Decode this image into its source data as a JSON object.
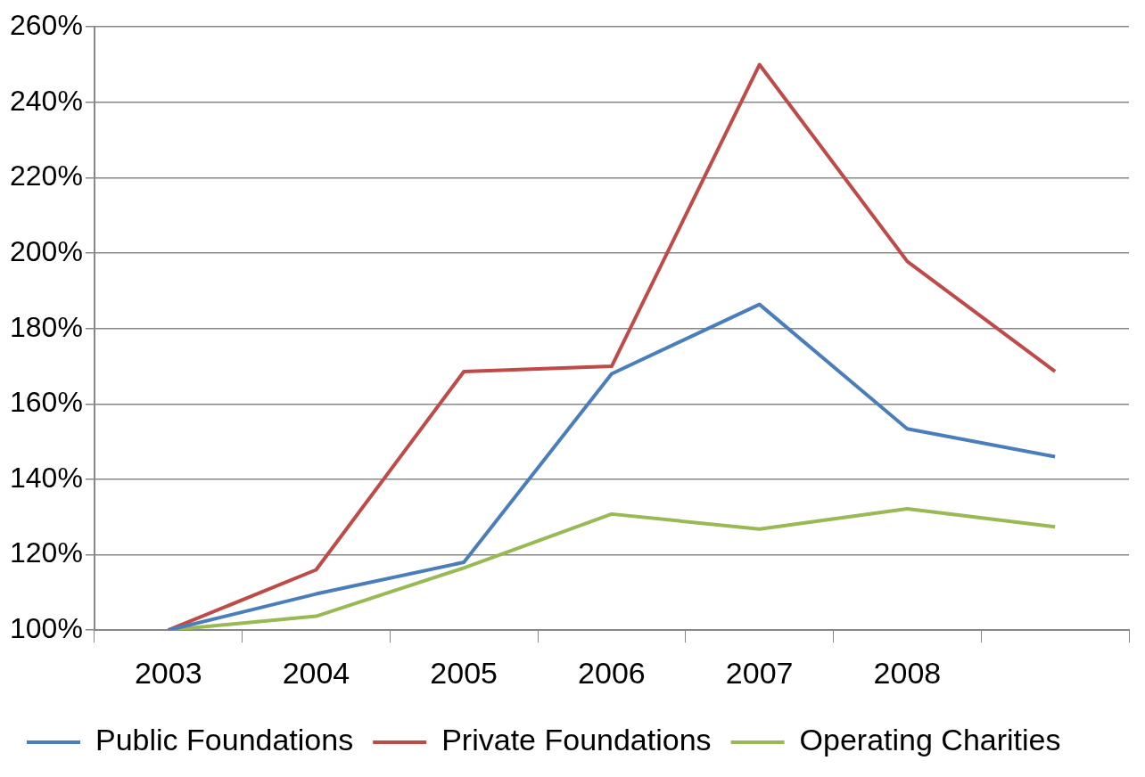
{
  "chart_data": {
    "type": "line",
    "categories": [
      "2003",
      "2004",
      "2005",
      "2006",
      "2007",
      "2008",
      null
    ],
    "series": [
      {
        "name": "Public Foundations",
        "color": "#4a7ebb",
        "values": [
          100,
          109.6,
          118,
          168,
          186.4,
          153.4,
          146
        ]
      },
      {
        "name": "Private Foundations",
        "color": "#be4b48",
        "values": [
          100,
          116,
          168.6,
          170,
          250,
          197.8,
          168.6
        ]
      },
      {
        "name": "Operating Charities",
        "color": "#98b954",
        "values": [
          100,
          103.7,
          116.5,
          130.8,
          126.8,
          132.2,
          127.4
        ]
      }
    ],
    "ylim": [
      100,
      260
    ],
    "yticks": [
      {
        "value": 100,
        "label": "100%"
      },
      {
        "value": 120,
        "label": "120%"
      },
      {
        "value": 140,
        "label": "140%"
      },
      {
        "value": 160,
        "label": "160%"
      },
      {
        "value": 180,
        "label": "180%"
      },
      {
        "value": 200,
        "label": "200%"
      },
      {
        "value": 220,
        "label": "220%"
      },
      {
        "value": 240,
        "label": "240%"
      },
      {
        "value": 260,
        "label": "260%"
      }
    ],
    "grid": "y",
    "legend": "bottom",
    "marker": "none",
    "line_style": "solid"
  }
}
